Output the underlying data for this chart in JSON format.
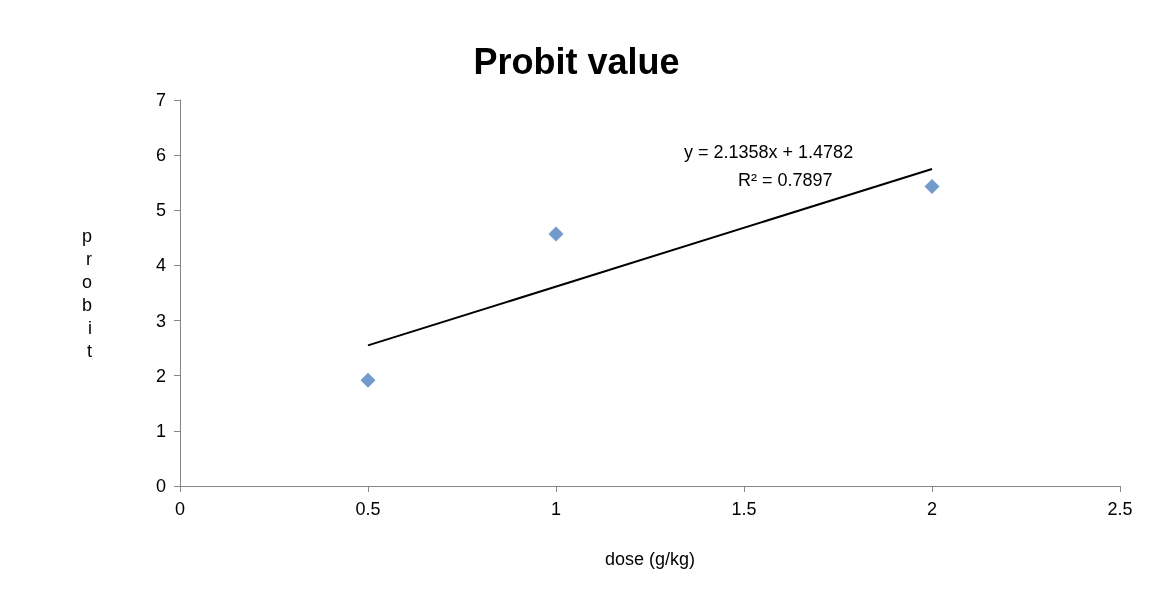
{
  "chart_data": {
    "type": "scatter",
    "title": "Probit value",
    "xlabel": "dose (g/kg)",
    "ylabel": "probit",
    "x": [
      0.5,
      1,
      2
    ],
    "series": [
      {
        "color": "#4f81bd",
        "values": [
          1.92,
          4.57,
          5.43
        ]
      },
      {
        "type": "line",
        "color": "#000000",
        "x": [
          0.5,
          2
        ],
        "values": [
          2.55,
          5.75
        ],
        "marker": "none"
      }
    ],
    "marker": "diamond",
    "xlim": [
      0,
      2.5
    ],
    "xticks": [
      0,
      0.5,
      1,
      1.5,
      2,
      2.5
    ],
    "ylim": [
      0,
      7
    ],
    "yticks": [
      0,
      1,
      2,
      3,
      4,
      5,
      6,
      7
    ],
    "grid": false,
    "annotations": [
      "y = 2.1358x + 1.4782",
      "R² = 0.7897"
    ]
  }
}
